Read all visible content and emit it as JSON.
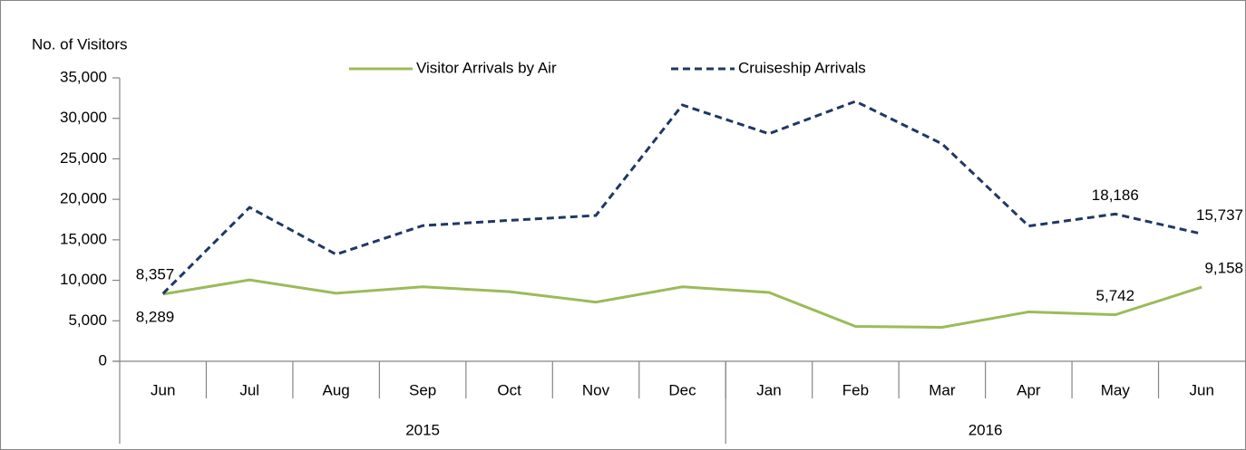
{
  "chart_data": {
    "type": "line",
    "y_label": "No. of Visitors",
    "categories": [
      "Jun",
      "Jul",
      "Aug",
      "Sep",
      "Oct",
      "Nov",
      "Dec",
      "Jan",
      "Feb",
      "Mar",
      "Apr",
      "May",
      "Jun"
    ],
    "groups": [
      {
        "label": "2015",
        "count": 7
      },
      {
        "label": "2016",
        "count": 6
      }
    ],
    "ylim": [
      0,
      35000
    ],
    "yticks": [
      0,
      {
        "value": 5000,
        "label": "5,000"
      },
      {
        "value": 10000,
        "label": "10,000"
      },
      {
        "value": 15000,
        "label": "15,000"
      },
      {
        "value": 20000,
        "label": "20,000"
      },
      {
        "value": 25000,
        "label": "25,000"
      },
      {
        "value": 30000,
        "label": "30,000"
      },
      {
        "value": 35000,
        "label": "35,000"
      }
    ],
    "grid": false,
    "series": [
      {
        "name": "Visitor Arrivals by Air",
        "color": "#9bbb59",
        "dash": false,
        "values": [
          8289,
          10050,
          8400,
          9200,
          8600,
          7300,
          9200,
          8500,
          4300,
          4200,
          6100,
          5742,
          9158
        ],
        "value_labels": [
          "8,289",
          null,
          null,
          null,
          null,
          null,
          null,
          null,
          null,
          null,
          null,
          "5,742",
          "9,158"
        ]
      },
      {
        "name": "Cruiseship Arrivals",
        "color": "#1f3864",
        "dash": true,
        "values": [
          8357,
          19000,
          13200,
          16750,
          17400,
          18000,
          31650,
          28100,
          32100,
          26850,
          16700,
          18186,
          15737
        ],
        "value_labels": [
          "8,357",
          null,
          null,
          null,
          null,
          null,
          null,
          null,
          null,
          null,
          null,
          "18,186",
          "15,737"
        ]
      }
    ]
  }
}
